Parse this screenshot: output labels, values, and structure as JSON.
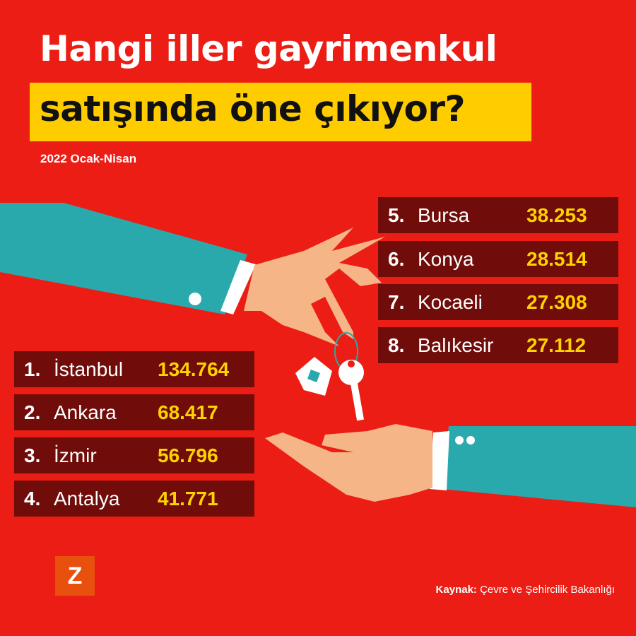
{
  "title": {
    "line1": "Hangi iller gayrimenkul",
    "line2": "satışında öne çıkıyor?"
  },
  "subtitle": "2022 Ocak-Nisan",
  "ranking": [
    {
      "rank": "1.",
      "city": "İstanbul",
      "value": "134.764"
    },
    {
      "rank": "2.",
      "city": "Ankara",
      "value": "68.417"
    },
    {
      "rank": "3.",
      "city": "İzmir",
      "value": "56.796"
    },
    {
      "rank": "4.",
      "city": "Antalya",
      "value": "41.771"
    },
    {
      "rank": "5.",
      "city": "Bursa",
      "value": "38.253"
    },
    {
      "rank": "6.",
      "city": "Konya",
      "value": "28.514"
    },
    {
      "rank": "7.",
      "city": "Kocaeli",
      "value": "27.308"
    },
    {
      "rank": "8.",
      "city": "Balıkesir",
      "value": "27.112"
    }
  ],
  "logo": "Z",
  "source": {
    "label": "Kaynak:",
    "text": "Çevre ve Şehircilik Bakanlığı"
  },
  "colors": {
    "background": "#ec1d14",
    "row": "#700c09",
    "value": "#ffd200",
    "highlight": "#ffcc00",
    "sleeve": "#2aa9ad",
    "skin": "#f5b586"
  }
}
